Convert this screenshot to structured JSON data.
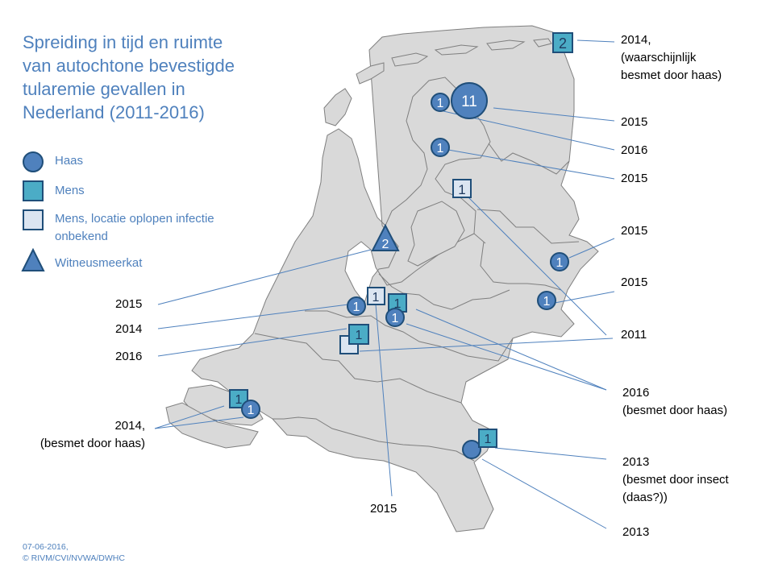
{
  "title_lines": [
    "Spreiding in tijd en ruimte",
    "van autochtone bevestigde",
    "tularemie gevallen in",
    "Nederland (2011-2016)"
  ],
  "legend": {
    "haas": "Haas",
    "mens": "Mens",
    "mens_onbekend_1": "Mens, locatie oplopen infectie",
    "mens_onbekend_2": "onbekend",
    "witneusmeerkat": "Witneusmeerkat"
  },
  "colors": {
    "haas": "#4f81bd",
    "mens": "#4bacc6",
    "unknown_fill": "#dbe5f1",
    "border": "#1f4e79",
    "land": "#d9d9d9",
    "land_border": "#7f7f7f",
    "title": "#4f81bd",
    "line": "#4f81bd"
  },
  "markers": {
    "groningen_mens": "2",
    "friesland_haas_big": "11",
    "friesland_haas_small": "1",
    "friesland_south_haas": "1",
    "drenthe_unknown": "1",
    "overijssel_haas_north": "1",
    "overijssel_haas_south": "1",
    "noordholland_meerkat": "2",
    "utrecht_haas_west": "1",
    "utrecht_unknown": "1",
    "utrecht_mens": "1",
    "utrecht_haas_east": "1",
    "zuidholland_mens": "1",
    "zeeland_mens": "1",
    "zeeland_haas": "1",
    "limburg_mens": "1"
  },
  "labels": {
    "l2014_haas_1": "2014,",
    "l2014_haas_2": "(waarschijnlijk",
    "l2014_haas_3": "besmet door haas)",
    "l2015_a": "2015",
    "l2016_a": "2016",
    "l2015_b": "2015",
    "l2015_c": "2015",
    "l2015_d": "2015",
    "l2011": "2011",
    "l2016_b_1": "2016",
    "l2016_b_2": "(besmet door haas)",
    "l2013_a_1": "2013",
    "l2013_a_2": "(besmet door insect",
    "l2013_a_3": "(daas?))",
    "l2013_b": "2013",
    "l2015_bottom": "2015",
    "l2015_left": "2015",
    "l2014_left": "2014",
    "l2016_left": "2016",
    "l2014_zeeland_1": "2014,",
    "l2014_zeeland_2": "(besmet door haas)"
  },
  "footer": {
    "date": "07-06-2016,",
    "credit": "© RIVM/CVI/NVWA/DWHC"
  }
}
